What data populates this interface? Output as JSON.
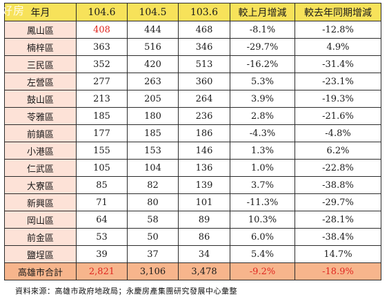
{
  "watermark": "好房",
  "table": {
    "headers": [
      "年月",
      "104.6",
      "104.5",
      "103.6",
      "較上月增減",
      "較去年同期增減"
    ],
    "rows": [
      {
        "district": "鳳山區",
        "v1046": "408",
        "v1045": "444",
        "v1036": "468",
        "mom": "-8.1%",
        "yoy": "-12.8%"
      },
      {
        "district": "楠梓區",
        "v1046": "363",
        "v1045": "516",
        "v1036": "346",
        "mom": "-29.7%",
        "yoy": "4.9%"
      },
      {
        "district": "三民區",
        "v1046": "352",
        "v1045": "420",
        "v1036": "513",
        "mom": "-16.2%",
        "yoy": "-31.4%"
      },
      {
        "district": "左營區",
        "v1046": "277",
        "v1045": "263",
        "v1036": "360",
        "mom": "5.3%",
        "yoy": "-23.1%"
      },
      {
        "district": "鼓山區",
        "v1046": "213",
        "v1045": "205",
        "v1036": "264",
        "mom": "3.9%",
        "yoy": "-19.3%"
      },
      {
        "district": "苓雅區",
        "v1046": "185",
        "v1045": "180",
        "v1036": "236",
        "mom": "2.8%",
        "yoy": "-21.6%"
      },
      {
        "district": "前鎮區",
        "v1046": "177",
        "v1045": "185",
        "v1036": "186",
        "mom": "-4.3%",
        "yoy": "-4.8%"
      },
      {
        "district": "小港區",
        "v1046": "155",
        "v1045": "153",
        "v1036": "146",
        "mom": "1.3%",
        "yoy": "6.2%"
      },
      {
        "district": "仁武區",
        "v1046": "105",
        "v1045": "104",
        "v1036": "136",
        "mom": "1.0%",
        "yoy": "-22.8%"
      },
      {
        "district": "大寮區",
        "v1046": "85",
        "v1045": "82",
        "v1036": "139",
        "mom": "3.7%",
        "yoy": "-38.8%"
      },
      {
        "district": "新興區",
        "v1046": "71",
        "v1045": "80",
        "v1036": "101",
        "mom": "-11.3%",
        "yoy": "-29.7%"
      },
      {
        "district": "岡山區",
        "v1046": "64",
        "v1045": "58",
        "v1036": "89",
        "mom": "10.3%",
        "yoy": "-28.1%"
      },
      {
        "district": "前金區",
        "v1046": "53",
        "v1045": "50",
        "v1036": "86",
        "mom": "6.0%",
        "yoy": "-38.4%"
      },
      {
        "district": "鹽埕區",
        "v1046": "39",
        "v1045": "37",
        "v1036": "34",
        "mom": "5.4%",
        "yoy": "14.7%"
      }
    ],
    "total": {
      "district": "高雄市合計",
      "v1046": "2,821",
      "v1045": "3,106",
      "v1036": "3,478",
      "mom": "-9.2%",
      "yoy": "-18.9%"
    }
  },
  "source_note": "資料來源：高雄市政府地政局；永慶房產集團研究發展中心彙整",
  "colors": {
    "header_bg": "#f7e25a",
    "district_bg": "#fde2d7",
    "total_bg": "#f7b58c",
    "highlight_red": "#e0261f"
  }
}
